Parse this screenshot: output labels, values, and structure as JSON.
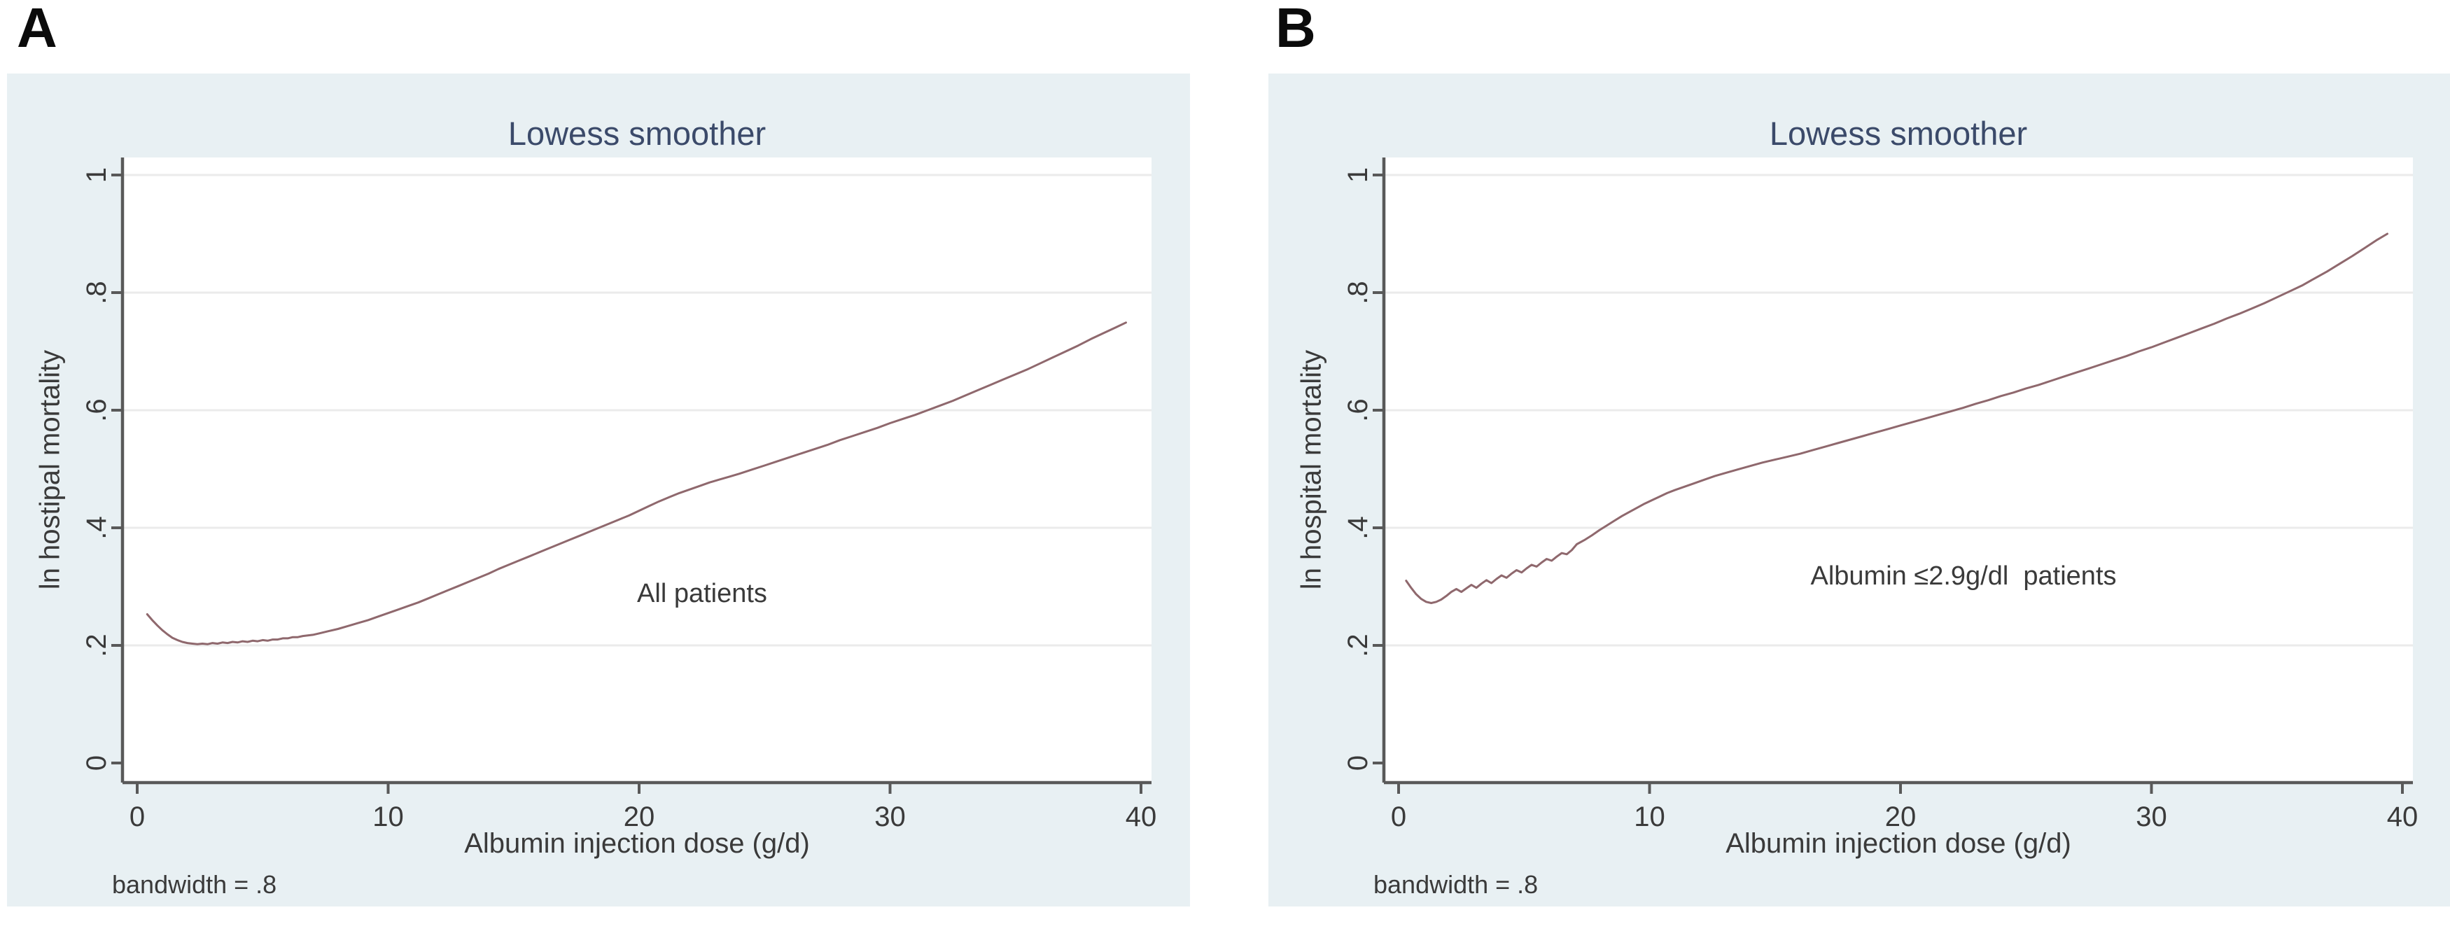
{
  "figure": {
    "panel_letters": [
      "A",
      "B"
    ]
  },
  "theme": {
    "page_bg": "#ffffff",
    "panel_bg": "#e8f0f3",
    "plot_bg": "#ffffff",
    "title_color": "#3b4a6a",
    "text_color": "#3a3a3a",
    "axis_color": "#595959",
    "grid_color": "#ebebeb",
    "curve_color": "#8f686d"
  },
  "chart_data": [
    {
      "type": "line",
      "panel_label": "A",
      "title": "Lowess smoother",
      "xlabel": "Albumin injection dose (g/d)",
      "ylabel": "ln hostipal mortality",
      "annotation": "All patients",
      "footnote": "bandwidth = .8",
      "legend": "none",
      "grid": "horizontal",
      "xlim": [
        0,
        40
      ],
      "ylim": [
        0,
        1
      ],
      "x_ticks": [
        {
          "label": "0",
          "value": 0
        },
        {
          "label": "10",
          "value": 10
        },
        {
          "label": "20",
          "value": 20
        },
        {
          "label": "30",
          "value": 30
        },
        {
          "label": "40",
          "value": 40
        }
      ],
      "y_ticks": [
        {
          "label": "0",
          "value": 0
        },
        {
          "label": ".2",
          "value": 0.2
        },
        {
          "label": ".4",
          "value": 0.4
        },
        {
          "label": ".6",
          "value": 0.6
        },
        {
          "label": ".8",
          "value": 0.8
        },
        {
          "label": "1",
          "value": 1
        }
      ],
      "series": [
        {
          "name": "lowess",
          "points": [
            [
              0.4,
              0.253
            ],
            [
              0.6,
              0.243
            ],
            [
              0.8,
              0.234
            ],
            [
              1.0,
              0.226
            ],
            [
              1.2,
              0.219
            ],
            [
              1.4,
              0.213
            ],
            [
              1.6,
              0.209
            ],
            [
              1.8,
              0.206
            ],
            [
              2.0,
              0.204
            ],
            [
              2.2,
              0.203
            ],
            [
              2.4,
              0.202
            ],
            [
              2.6,
              0.203
            ],
            [
              2.8,
              0.202
            ],
            [
              3.0,
              0.204
            ],
            [
              3.2,
              0.203
            ],
            [
              3.4,
              0.205
            ],
            [
              3.6,
              0.204
            ],
            [
              3.8,
              0.206
            ],
            [
              4.0,
              0.205
            ],
            [
              4.2,
              0.207
            ],
            [
              4.4,
              0.206
            ],
            [
              4.6,
              0.208
            ],
            [
              4.8,
              0.207
            ],
            [
              5.0,
              0.209
            ],
            [
              5.2,
              0.208
            ],
            [
              5.4,
              0.21
            ],
            [
              5.6,
              0.21
            ],
            [
              5.8,
              0.212
            ],
            [
              6.0,
              0.212
            ],
            [
              6.2,
              0.214
            ],
            [
              6.4,
              0.214
            ],
            [
              6.6,
              0.216
            ],
            [
              6.8,
              0.217
            ],
            [
              7.0,
              0.218
            ],
            [
              7.3,
              0.221
            ],
            [
              7.6,
              0.224
            ],
            [
              8.0,
              0.228
            ],
            [
              8.4,
              0.233
            ],
            [
              8.8,
              0.238
            ],
            [
              9.2,
              0.243
            ],
            [
              9.6,
              0.249
            ],
            [
              10.0,
              0.255
            ],
            [
              10.4,
              0.261
            ],
            [
              10.8,
              0.267
            ],
            [
              11.2,
              0.273
            ],
            [
              11.6,
              0.28
            ],
            [
              12.0,
              0.287
            ],
            [
              12.4,
              0.294
            ],
            [
              12.8,
              0.301
            ],
            [
              13.2,
              0.308
            ],
            [
              13.6,
              0.315
            ],
            [
              14.0,
              0.322
            ],
            [
              14.4,
              0.33
            ],
            [
              14.8,
              0.337
            ],
            [
              15.2,
              0.344
            ],
            [
              15.6,
              0.351
            ],
            [
              16.0,
              0.358
            ],
            [
              16.4,
              0.365
            ],
            [
              16.8,
              0.372
            ],
            [
              17.2,
              0.379
            ],
            [
              17.6,
              0.386
            ],
            [
              18.0,
              0.393
            ],
            [
              18.4,
              0.4
            ],
            [
              18.8,
              0.407
            ],
            [
              19.2,
              0.414
            ],
            [
              19.6,
              0.421
            ],
            [
              20.0,
              0.429
            ],
            [
              20.4,
              0.437
            ],
            [
              20.8,
              0.445
            ],
            [
              21.2,
              0.452
            ],
            [
              21.6,
              0.459
            ],
            [
              22.0,
              0.465
            ],
            [
              22.4,
              0.471
            ],
            [
              22.8,
              0.477
            ],
            [
              23.2,
              0.482
            ],
            [
              23.6,
              0.487
            ],
            [
              24.0,
              0.492
            ],
            [
              24.5,
              0.499
            ],
            [
              25.0,
              0.506
            ],
            [
              25.5,
              0.513
            ],
            [
              26.0,
              0.52
            ],
            [
              26.5,
              0.527
            ],
            [
              27.0,
              0.534
            ],
            [
              27.5,
              0.541
            ],
            [
              28.0,
              0.549
            ],
            [
              28.5,
              0.556
            ],
            [
              29.0,
              0.563
            ],
            [
              29.5,
              0.57
            ],
            [
              30.0,
              0.578
            ],
            [
              30.5,
              0.585
            ],
            [
              31.0,
              0.592
            ],
            [
              31.5,
              0.6
            ],
            [
              32.0,
              0.608
            ],
            [
              32.5,
              0.616
            ],
            [
              33.0,
              0.625
            ],
            [
              33.5,
              0.634
            ],
            [
              34.0,
              0.643
            ],
            [
              34.5,
              0.652
            ],
            [
              35.0,
              0.661
            ],
            [
              35.5,
              0.67
            ],
            [
              36.0,
              0.68
            ],
            [
              36.5,
              0.69
            ],
            [
              37.0,
              0.7
            ],
            [
              37.5,
              0.71
            ],
            [
              38.0,
              0.721
            ],
            [
              38.5,
              0.731
            ],
            [
              39.0,
              0.741
            ],
            [
              39.4,
              0.749
            ]
          ]
        }
      ]
    },
    {
      "type": "line",
      "panel_label": "B",
      "title": "Lowess smoother",
      "xlabel": "Albumin injection dose (g/d)",
      "ylabel": "ln hospital mortality",
      "annotation": "Albumin ≤2.9g/dl  patients",
      "footnote": "bandwidth = .8",
      "legend": "none",
      "grid": "horizontal",
      "xlim": [
        0,
        40
      ],
      "ylim": [
        0,
        1
      ],
      "x_ticks": [
        {
          "label": "0",
          "value": 0
        },
        {
          "label": "10",
          "value": 10
        },
        {
          "label": "20",
          "value": 20
        },
        {
          "label": "30",
          "value": 30
        },
        {
          "label": "40",
          "value": 40
        }
      ],
      "y_ticks": [
        {
          "label": "0",
          "value": 0
        },
        {
          "label": ".2",
          "value": 0.2
        },
        {
          "label": ".4",
          "value": 0.4
        },
        {
          "label": ".6",
          "value": 0.6
        },
        {
          "label": ".8",
          "value": 0.8
        },
        {
          "label": "1",
          "value": 1
        }
      ],
      "series": [
        {
          "name": "lowess",
          "points": [
            [
              0.3,
              0.31
            ],
            [
              0.5,
              0.298
            ],
            [
              0.7,
              0.287
            ],
            [
              0.9,
              0.279
            ],
            [
              1.1,
              0.274
            ],
            [
              1.3,
              0.272
            ],
            [
              1.5,
              0.274
            ],
            [
              1.7,
              0.278
            ],
            [
              1.9,
              0.284
            ],
            [
              2.1,
              0.291
            ],
            [
              2.3,
              0.296
            ],
            [
              2.5,
              0.291
            ],
            [
              2.7,
              0.297
            ],
            [
              2.9,
              0.303
            ],
            [
              3.1,
              0.298
            ],
            [
              3.3,
              0.305
            ],
            [
              3.5,
              0.311
            ],
            [
              3.7,
              0.306
            ],
            [
              3.9,
              0.313
            ],
            [
              4.1,
              0.319
            ],
            [
              4.3,
              0.315
            ],
            [
              4.5,
              0.322
            ],
            [
              4.7,
              0.328
            ],
            [
              4.9,
              0.324
            ],
            [
              5.1,
              0.331
            ],
            [
              5.3,
              0.337
            ],
            [
              5.5,
              0.334
            ],
            [
              5.7,
              0.341
            ],
            [
              5.9,
              0.347
            ],
            [
              6.1,
              0.344
            ],
            [
              6.3,
              0.351
            ],
            [
              6.5,
              0.357
            ],
            [
              6.7,
              0.355
            ],
            [
              6.9,
              0.362
            ],
            [
              7.1,
              0.372
            ],
            [
              7.4,
              0.379
            ],
            [
              7.7,
              0.387
            ],
            [
              8.0,
              0.396
            ],
            [
              8.3,
              0.404
            ],
            [
              8.6,
              0.412
            ],
            [
              8.9,
              0.42
            ],
            [
              9.2,
              0.427
            ],
            [
              9.5,
              0.434
            ],
            [
              9.8,
              0.441
            ],
            [
              10.1,
              0.447
            ],
            [
              10.4,
              0.453
            ],
            [
              10.7,
              0.459
            ],
            [
              11.0,
              0.464
            ],
            [
              11.4,
              0.47
            ],
            [
              11.8,
              0.476
            ],
            [
              12.2,
              0.482
            ],
            [
              12.6,
              0.488
            ],
            [
              13.0,
              0.493
            ],
            [
              13.5,
              0.499
            ],
            [
              14.0,
              0.505
            ],
            [
              14.5,
              0.511
            ],
            [
              15.0,
              0.516
            ],
            [
              15.5,
              0.521
            ],
            [
              16.0,
              0.526
            ],
            [
              16.5,
              0.532
            ],
            [
              17.0,
              0.538
            ],
            [
              17.5,
              0.544
            ],
            [
              18.0,
              0.55
            ],
            [
              18.5,
              0.556
            ],
            [
              19.0,
              0.562
            ],
            [
              19.5,
              0.568
            ],
            [
              20.0,
              0.574
            ],
            [
              20.5,
              0.58
            ],
            [
              21.0,
              0.586
            ],
            [
              21.5,
              0.592
            ],
            [
              22.0,
              0.598
            ],
            [
              22.5,
              0.604
            ],
            [
              23.0,
              0.611
            ],
            [
              23.5,
              0.617
            ],
            [
              24.0,
              0.624
            ],
            [
              24.5,
              0.63
            ],
            [
              25.0,
              0.637
            ],
            [
              25.5,
              0.643
            ],
            [
              26.0,
              0.65
            ],
            [
              26.5,
              0.657
            ],
            [
              27.0,
              0.664
            ],
            [
              27.5,
              0.671
            ],
            [
              28.0,
              0.678
            ],
            [
              28.5,
              0.685
            ],
            [
              29.0,
              0.692
            ],
            [
              29.5,
              0.7
            ],
            [
              30.0,
              0.707
            ],
            [
              30.5,
              0.715
            ],
            [
              31.0,
              0.723
            ],
            [
              31.5,
              0.731
            ],
            [
              32.0,
              0.739
            ],
            [
              32.5,
              0.747
            ],
            [
              33.0,
              0.756
            ],
            [
              33.5,
              0.764
            ],
            [
              34.0,
              0.773
            ],
            [
              34.5,
              0.782
            ],
            [
              35.0,
              0.792
            ],
            [
              35.5,
              0.802
            ],
            [
              36.0,
              0.812
            ],
            [
              36.5,
              0.824
            ],
            [
              37.0,
              0.836
            ],
            [
              37.5,
              0.849
            ],
            [
              38.0,
              0.862
            ],
            [
              38.5,
              0.876
            ],
            [
              39.0,
              0.89
            ],
            [
              39.4,
              0.9
            ]
          ]
        }
      ]
    }
  ]
}
